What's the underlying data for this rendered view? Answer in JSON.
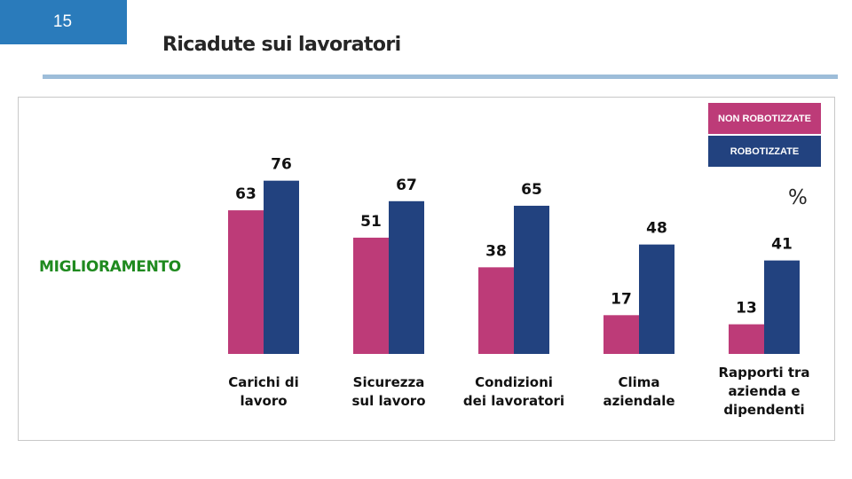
{
  "header": {
    "page_number": "15",
    "title": "Ricadute sui lavoratori"
  },
  "chart_data": {
    "type": "bar",
    "title": "Ricadute sui lavoratori",
    "unit": "%",
    "row_label": "MIGLIORAMENTO",
    "categories": [
      "Carichi di\nlavoro",
      "Sicurezza\nsul lavoro",
      "Condizioni\ndei lavoratori",
      "Clima\naziendale",
      "Rapporti tra\nazienda e\ndipendenti"
    ],
    "series": [
      {
        "name": "NON ROBOTIZZATE",
        "color": "#bd3b78",
        "values": [
          63,
          51,
          38,
          17,
          13
        ]
      },
      {
        "name": "ROBOTIZZATE",
        "color": "#22427f",
        "values": [
          76,
          67,
          65,
          48,
          41
        ]
      }
    ],
    "ylim": [
      0,
      100
    ],
    "grid": false,
    "legend": "top-right"
  }
}
